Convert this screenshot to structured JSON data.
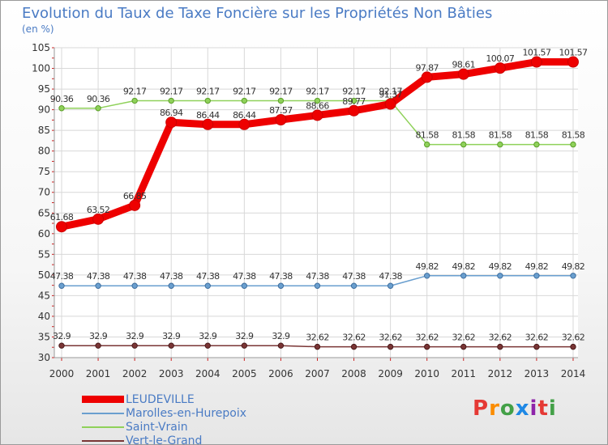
{
  "header": {
    "title": "Evolution du Taux de Taxe Foncière sur les Propriétés Non Bâties",
    "unit": "(en %)"
  },
  "brand": {
    "letters": [
      "P",
      "r",
      "o",
      "x",
      "i",
      "t",
      "i"
    ],
    "colors": [
      "#e53935",
      "#fb8c00",
      "#43a047",
      "#1e88e5",
      "#8e24aa",
      "#e53935",
      "#43a047"
    ]
  },
  "chart_data": {
    "type": "line",
    "title": "Evolution du Taux de Taxe Foncière sur les Propriétés Non Bâties",
    "ylabel": "(en %)",
    "xlabel": "",
    "x": [
      "2000",
      "2001",
      "2002",
      "2003",
      "2004",
      "2005",
      "2006",
      "2007",
      "2008",
      "2009",
      "2010",
      "2011",
      "2012",
      "2013",
      "2014"
    ],
    "ylim": [
      30,
      105
    ],
    "yticks": [
      "30",
      "35",
      "40",
      "45",
      "50",
      "55",
      "60",
      "65",
      "70",
      "75",
      "80",
      "85",
      "90",
      "95",
      "100",
      "105"
    ],
    "grid": true,
    "legend_position": "bottom-left",
    "series": [
      {
        "name": "Marolles-en-Hurepoix",
        "color": "#6a9fcf",
        "values": [
          47.38,
          47.38,
          47.38,
          47.38,
          47.38,
          47.38,
          47.38,
          47.38,
          47.38,
          47.38,
          49.82,
          49.82,
          49.82,
          49.82,
          49.82
        ],
        "labels": [
          "47.38",
          "47.38",
          "47.38",
          "47.38",
          "47.38",
          "47.38",
          "47.38",
          "47.38",
          "47.38",
          "47.38",
          "49.82",
          "49.82",
          "49.82",
          "49.82",
          "49.82"
        ]
      },
      {
        "name": "Saint-Vrain",
        "color": "#8fd15a",
        "values": [
          90.36,
          90.36,
          92.17,
          92.17,
          92.17,
          92.17,
          92.17,
          92.17,
          92.17,
          92.17,
          81.58,
          81.58,
          81.58,
          81.58,
          81.58
        ],
        "labels": [
          "90.36",
          "90.36",
          "92.17",
          "92.17",
          "92.17",
          "92.17",
          "92.17",
          "92.17",
          "92.17",
          "92.17",
          "81.58",
          "81.58",
          "81.58",
          "81.58",
          "81.58"
        ]
      },
      {
        "name": "Vert-le-Grand",
        "color": "#7a3535",
        "values": [
          32.9,
          32.9,
          32.9,
          32.9,
          32.9,
          32.9,
          32.9,
          32.62,
          32.62,
          32.62,
          32.62,
          32.62,
          32.62,
          32.62,
          32.62
        ],
        "labels": [
          "32.9",
          "32.9",
          "32.9",
          "32.9",
          "32.9",
          "32.9",
          "32.9",
          "32.62",
          "32.62",
          "32.62",
          "32.62",
          "32.62",
          "32.62",
          "32.62",
          "32.62"
        ]
      },
      {
        "name": "LEUDEVILLE",
        "color": "#ee0000",
        "values": [
          61.68,
          63.52,
          66.85,
          86.94,
          86.44,
          86.44,
          87.57,
          88.66,
          89.77,
          91.37,
          97.87,
          98.61,
          100.07,
          101.57,
          101.57
        ],
        "labels": [
          "61.68",
          "63.52",
          "66.85",
          "86.94",
          "86.44",
          "86.44",
          "87.57",
          "88.66",
          "89.77",
          "91.37",
          "97.87",
          "98.61",
          "100.07",
          "101.57",
          "101.57"
        ]
      }
    ],
    "legend": [
      {
        "name": "LEUDEVILLE",
        "color": "#ee0000",
        "width": 9
      },
      {
        "name": "Marolles-en-Hurepoix",
        "color": "#6a9fcf",
        "width": 2
      },
      {
        "name": "Saint-Vrain",
        "color": "#8fd15a",
        "width": 2
      },
      {
        "name": "Vert-le-Grand",
        "color": "#7a3535",
        "width": 2
      }
    ]
  }
}
